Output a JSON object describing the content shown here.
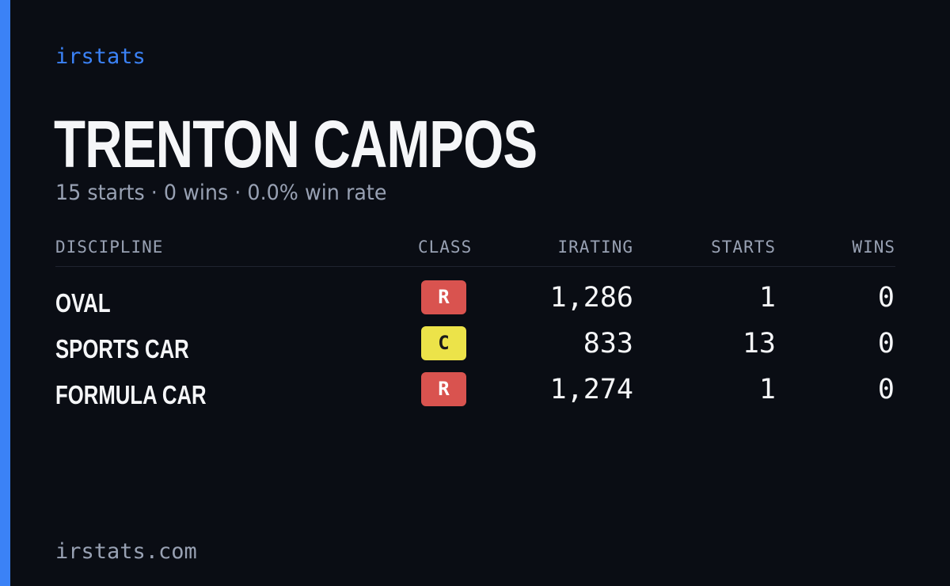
{
  "brand": "irstats",
  "driver": {
    "name": "TRENTON CAMPOS",
    "summary": "15 starts · 0 wins · 0.0% win rate"
  },
  "table": {
    "headers": {
      "discipline": "DISCIPLINE",
      "class": "CLASS",
      "irating": "IRATING",
      "starts": "STARTS",
      "wins": "WINS"
    },
    "rows": [
      {
        "discipline": "OVAL",
        "class": "R",
        "irating": "1,286",
        "starts": "1",
        "wins": "0"
      },
      {
        "discipline": "SPORTS CAR",
        "class": "C",
        "irating": "833",
        "starts": "13",
        "wins": "0"
      },
      {
        "discipline": "FORMULA CAR",
        "class": "R",
        "irating": "1,274",
        "starts": "1",
        "wins": "0"
      }
    ]
  },
  "footer": "irstats.com",
  "colors": {
    "accent": "#3b82f6",
    "background": "#0a0d14",
    "class_r": "#d9534f",
    "class_c": "#ece349"
  }
}
